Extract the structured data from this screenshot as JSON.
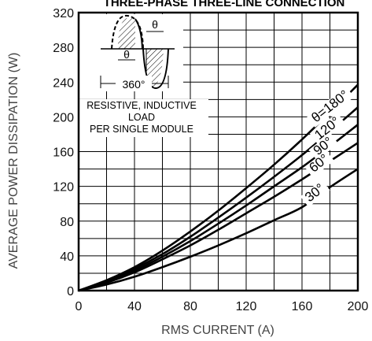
{
  "chart_data": {
    "type": "line",
    "title": "THREE-PHASE THREE-LINE CONNECTION",
    "xlabel": "RMS CURRENT (A)",
    "ylabel": "AVERAGE POWER DISSIPATION (W)",
    "xlim": [
      0,
      200
    ],
    "ylim": [
      0,
      320
    ],
    "x_ticks": [
      "0",
      "40",
      "80",
      "120",
      "160",
      "200"
    ],
    "y_ticks": [
      "0",
      "40",
      "80",
      "120",
      "160",
      "200",
      "240",
      "280",
      "320"
    ],
    "grid": true,
    "note_lines": [
      "RESISTIVE, INDUCTIVE",
      "LOAD",
      "PER SINGLE MODULE"
    ],
    "inset": {
      "angle_symbol": "θ",
      "period_label": "360°"
    },
    "series": [
      {
        "name": "θ=180°",
        "x": [
          0,
          20,
          40,
          60,
          80,
          100,
          120,
          140,
          160,
          180,
          200
        ],
        "y": [
          0,
          12,
          27,
          46,
          68,
          92,
          118,
          145,
          174,
          205,
          237
        ]
      },
      {
        "name": "120°",
        "x": [
          0,
          20,
          40,
          60,
          80,
          100,
          120,
          140,
          160,
          180,
          200
        ],
        "y": [
          0,
          11,
          25,
          42,
          62,
          84,
          107,
          131,
          156,
          183,
          211
        ]
      },
      {
        "name": "90°",
        "x": [
          0,
          20,
          40,
          60,
          80,
          100,
          120,
          140,
          160,
          180,
          200
        ],
        "y": [
          0,
          10,
          23,
          39,
          57,
          77,
          98,
          120,
          142,
          166,
          191
        ]
      },
      {
        "name": "60°",
        "x": [
          0,
          20,
          40,
          60,
          80,
          100,
          120,
          140,
          160,
          180,
          200
        ],
        "y": [
          0,
          9,
          21,
          36,
          52,
          70,
          89,
          108,
          128,
          149,
          170
        ]
      },
      {
        "name": "30°",
        "x": [
          0,
          20,
          40,
          60,
          80,
          100,
          120,
          140,
          160,
          180,
          200
        ],
        "y": [
          0,
          7,
          16,
          27,
          39,
          52,
          66,
          81,
          96,
          119,
          140
        ]
      }
    ]
  }
}
